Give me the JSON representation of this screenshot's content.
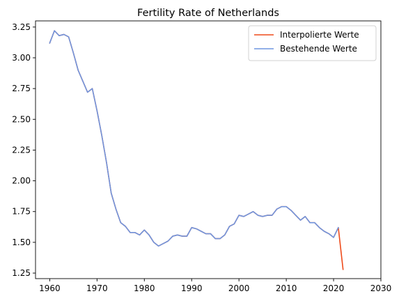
{
  "chart_data": {
    "type": "line",
    "title": "Fertility Rate of Netherlands",
    "xlabel": "",
    "ylabel": "",
    "xlim": [
      1957,
      2030
    ],
    "ylim": [
      1.205,
      3.3
    ],
    "xticks": [
      1960,
      1970,
      1980,
      1990,
      2000,
      2010,
      2020,
      2030
    ],
    "yticks": [
      1.25,
      1.5,
      1.75,
      2.0,
      2.25,
      2.5,
      2.75,
      3.0,
      3.25
    ],
    "ytick_labels": [
      "1.25",
      "1.50",
      "1.75",
      "2.00",
      "2.25",
      "2.50",
      "2.75",
      "3.00",
      "3.25"
    ],
    "grid": false,
    "legend_position": "top-right",
    "series": [
      {
        "name": "Interpolierte Werte",
        "color": "#ee4a1a",
        "x": [
          1960,
          1961,
          1962,
          1963,
          1964,
          1965,
          1966,
          1967,
          1968,
          1969,
          1970,
          1971,
          1972,
          1973,
          1974,
          1975,
          1976,
          1977,
          1978,
          1979,
          1980,
          1981,
          1982,
          1983,
          1984,
          1985,
          1986,
          1987,
          1988,
          1989,
          1990,
          1991,
          1992,
          1993,
          1994,
          1995,
          1996,
          1997,
          1998,
          1999,
          2000,
          2001,
          2002,
          2003,
          2004,
          2005,
          2006,
          2007,
          2008,
          2009,
          2010,
          2011,
          2012,
          2013,
          2014,
          2015,
          2016,
          2017,
          2018,
          2019,
          2020,
          2021,
          2022
        ],
        "y": [
          3.12,
          3.22,
          3.18,
          3.19,
          3.17,
          3.04,
          2.9,
          2.81,
          2.72,
          2.75,
          2.57,
          2.37,
          2.15,
          1.9,
          1.77,
          1.66,
          1.63,
          1.58,
          1.58,
          1.56,
          1.6,
          1.56,
          1.5,
          1.47,
          1.49,
          1.51,
          1.55,
          1.56,
          1.55,
          1.55,
          1.62,
          1.61,
          1.59,
          1.57,
          1.57,
          1.53,
          1.53,
          1.56,
          1.63,
          1.65,
          1.72,
          1.71,
          1.73,
          1.75,
          1.72,
          1.71,
          1.72,
          1.72,
          1.77,
          1.79,
          1.79,
          1.76,
          1.72,
          1.68,
          1.71,
          1.66,
          1.66,
          1.62,
          1.59,
          1.57,
          1.54,
          1.62,
          1.28
        ]
      },
      {
        "name": "Bestehende Werte",
        "color": "#6f96e0",
        "x": [
          1960,
          1961,
          1962,
          1963,
          1964,
          1965,
          1966,
          1967,
          1968,
          1969,
          1970,
          1971,
          1972,
          1973,
          1974,
          1975,
          1976,
          1977,
          1978,
          1979,
          1980,
          1981,
          1982,
          1983,
          1984,
          1985,
          1986,
          1987,
          1988,
          1989,
          1990,
          1991,
          1992,
          1993,
          1994,
          1995,
          1996,
          1997,
          1998,
          1999,
          2000,
          2001,
          2002,
          2003,
          2004,
          2005,
          2006,
          2007,
          2008,
          2009,
          2010,
          2011,
          2012,
          2013,
          2014,
          2015,
          2016,
          2017,
          2018,
          2019,
          2020,
          2021
        ],
        "y": [
          3.12,
          3.22,
          3.18,
          3.19,
          3.17,
          3.04,
          2.9,
          2.81,
          2.72,
          2.75,
          2.57,
          2.37,
          2.15,
          1.9,
          1.77,
          1.66,
          1.63,
          1.58,
          1.58,
          1.56,
          1.6,
          1.56,
          1.5,
          1.47,
          1.49,
          1.51,
          1.55,
          1.56,
          1.55,
          1.55,
          1.62,
          1.61,
          1.59,
          1.57,
          1.57,
          1.53,
          1.53,
          1.56,
          1.63,
          1.65,
          1.72,
          1.71,
          1.73,
          1.75,
          1.72,
          1.71,
          1.72,
          1.72,
          1.77,
          1.79,
          1.79,
          1.76,
          1.72,
          1.68,
          1.71,
          1.66,
          1.66,
          1.62,
          1.59,
          1.57,
          1.54,
          1.62
        ]
      }
    ]
  }
}
